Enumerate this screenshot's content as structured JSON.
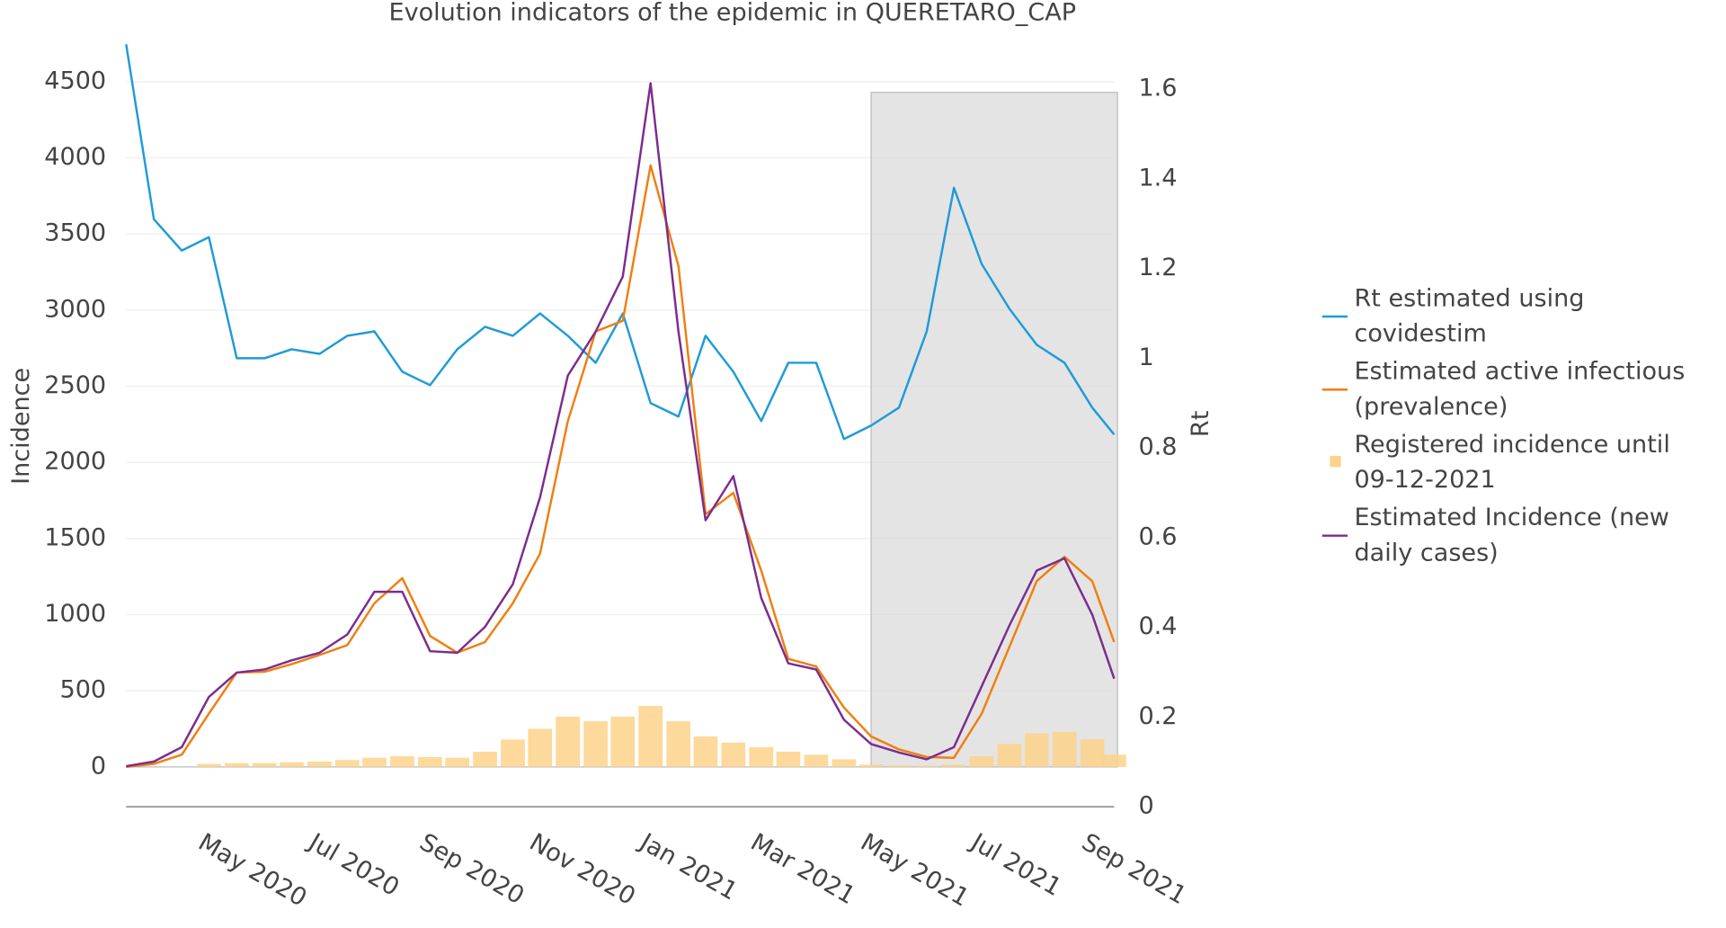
{
  "chart_data": {
    "type": "line",
    "title": "Evolution indicators of the epidemic in QUERETARO_CAP",
    "y_label": "Incidence",
    "y2_label": "Rt",
    "x": [
      2020.208,
      2020.25,
      2020.292,
      2020.333,
      2020.375,
      2020.417,
      2020.458,
      2020.5,
      2020.542,
      2020.583,
      2020.625,
      2020.667,
      2020.708,
      2020.75,
      2020.792,
      2020.833,
      2020.875,
      2020.917,
      2020.958,
      2021.0,
      2021.042,
      2021.083,
      2021.125,
      2021.167,
      2021.208,
      2021.25,
      2021.292,
      2021.333,
      2021.375,
      2021.417,
      2021.458,
      2021.5,
      2021.542,
      2021.583,
      2021.625,
      2021.667,
      2021.7
    ],
    "xlim": [
      2020.208,
      2021.7
    ],
    "xticks": [
      {
        "value": 2020.333,
        "label": "May 2020"
      },
      {
        "value": 2020.5,
        "label": "Jul 2020"
      },
      {
        "value": 2020.667,
        "label": "Sep 2020"
      },
      {
        "value": 2020.833,
        "label": "Nov 2020"
      },
      {
        "value": 2021.0,
        "label": "Jan 2021"
      },
      {
        "value": 2021.167,
        "label": "Mar 2021"
      },
      {
        "value": 2021.333,
        "label": "May 2021"
      },
      {
        "value": 2021.5,
        "label": "Jul 2021"
      },
      {
        "value": 2021.667,
        "label": "Sep 2021"
      }
    ],
    "ylim": [
      -262,
      4746
    ],
    "yticks": [
      0,
      500,
      1000,
      1500,
      2000,
      2500,
      3000,
      3500,
      4000,
      4500
    ],
    "y2lim": [
      0,
      1.7
    ],
    "y2ticks": [
      0,
      0.2,
      0.4,
      0.6,
      0.8,
      1,
      1.2,
      1.4,
      1.6
    ],
    "grid": true,
    "shade_xlim": [
      2021.333,
      2021.7
    ],
    "shade_ylim": [
      0,
      4430
    ],
    "series": [
      {
        "name": "Rt estimated using covidestim",
        "type": "line",
        "axis": "y2",
        "color": "#1f9bd7",
        "values": [
          1.7,
          1.31,
          1.24,
          1.27,
          1.0,
          1.0,
          1.02,
          1.01,
          1.05,
          1.06,
          0.97,
          0.94,
          1.02,
          1.07,
          1.05,
          1.1,
          1.05,
          0.99,
          1.1,
          0.9,
          0.87,
          1.05,
          0.97,
          0.86,
          0.99,
          0.99,
          0.82,
          0.85,
          0.89,
          1.06,
          1.38,
          1.21,
          1.11,
          1.03,
          0.99,
          0.89,
          0.83
        ]
      },
      {
        "name": "Estimated active infectious (prevalence)",
        "type": "line",
        "color": "#f07f0f",
        "values": [
          0,
          20,
          80,
          350,
          620,
          625,
          675,
          735,
          800,
          1075,
          1240,
          860,
          750,
          820,
          1075,
          1400,
          2270,
          2860,
          2930,
          3950,
          3290,
          1660,
          1800,
          1290,
          710,
          660,
          390,
          200,
          115,
          65,
          60,
          350,
          790,
          1220,
          1380,
          1220,
          820
        ]
      },
      {
        "name": "Registered incidence until 09-12-2021",
        "type": "bar",
        "color": "#fdd28a",
        "values": [
          0,
          0,
          0,
          20,
          25,
          25,
          30,
          35,
          45,
          60,
          70,
          65,
          60,
          100,
          180,
          250,
          330,
          300,
          330,
          400,
          300,
          200,
          160,
          130,
          100,
          80,
          50,
          15,
          10,
          8,
          15,
          70,
          150,
          220,
          230,
          180,
          80
        ]
      },
      {
        "name": "Estimated Incidence (new daily cases)",
        "type": "line",
        "color": "#7b2d8e",
        "values": [
          5,
          35,
          130,
          460,
          620,
          640,
          700,
          750,
          870,
          1150,
          1150,
          760,
          750,
          920,
          1200,
          1770,
          2570,
          2860,
          3220,
          4490,
          2860,
          1620,
          1910,
          1110,
          680,
          640,
          310,
          150,
          95,
          50,
          130,
          530,
          930,
          1290,
          1370,
          1000,
          580
        ]
      }
    ]
  }
}
